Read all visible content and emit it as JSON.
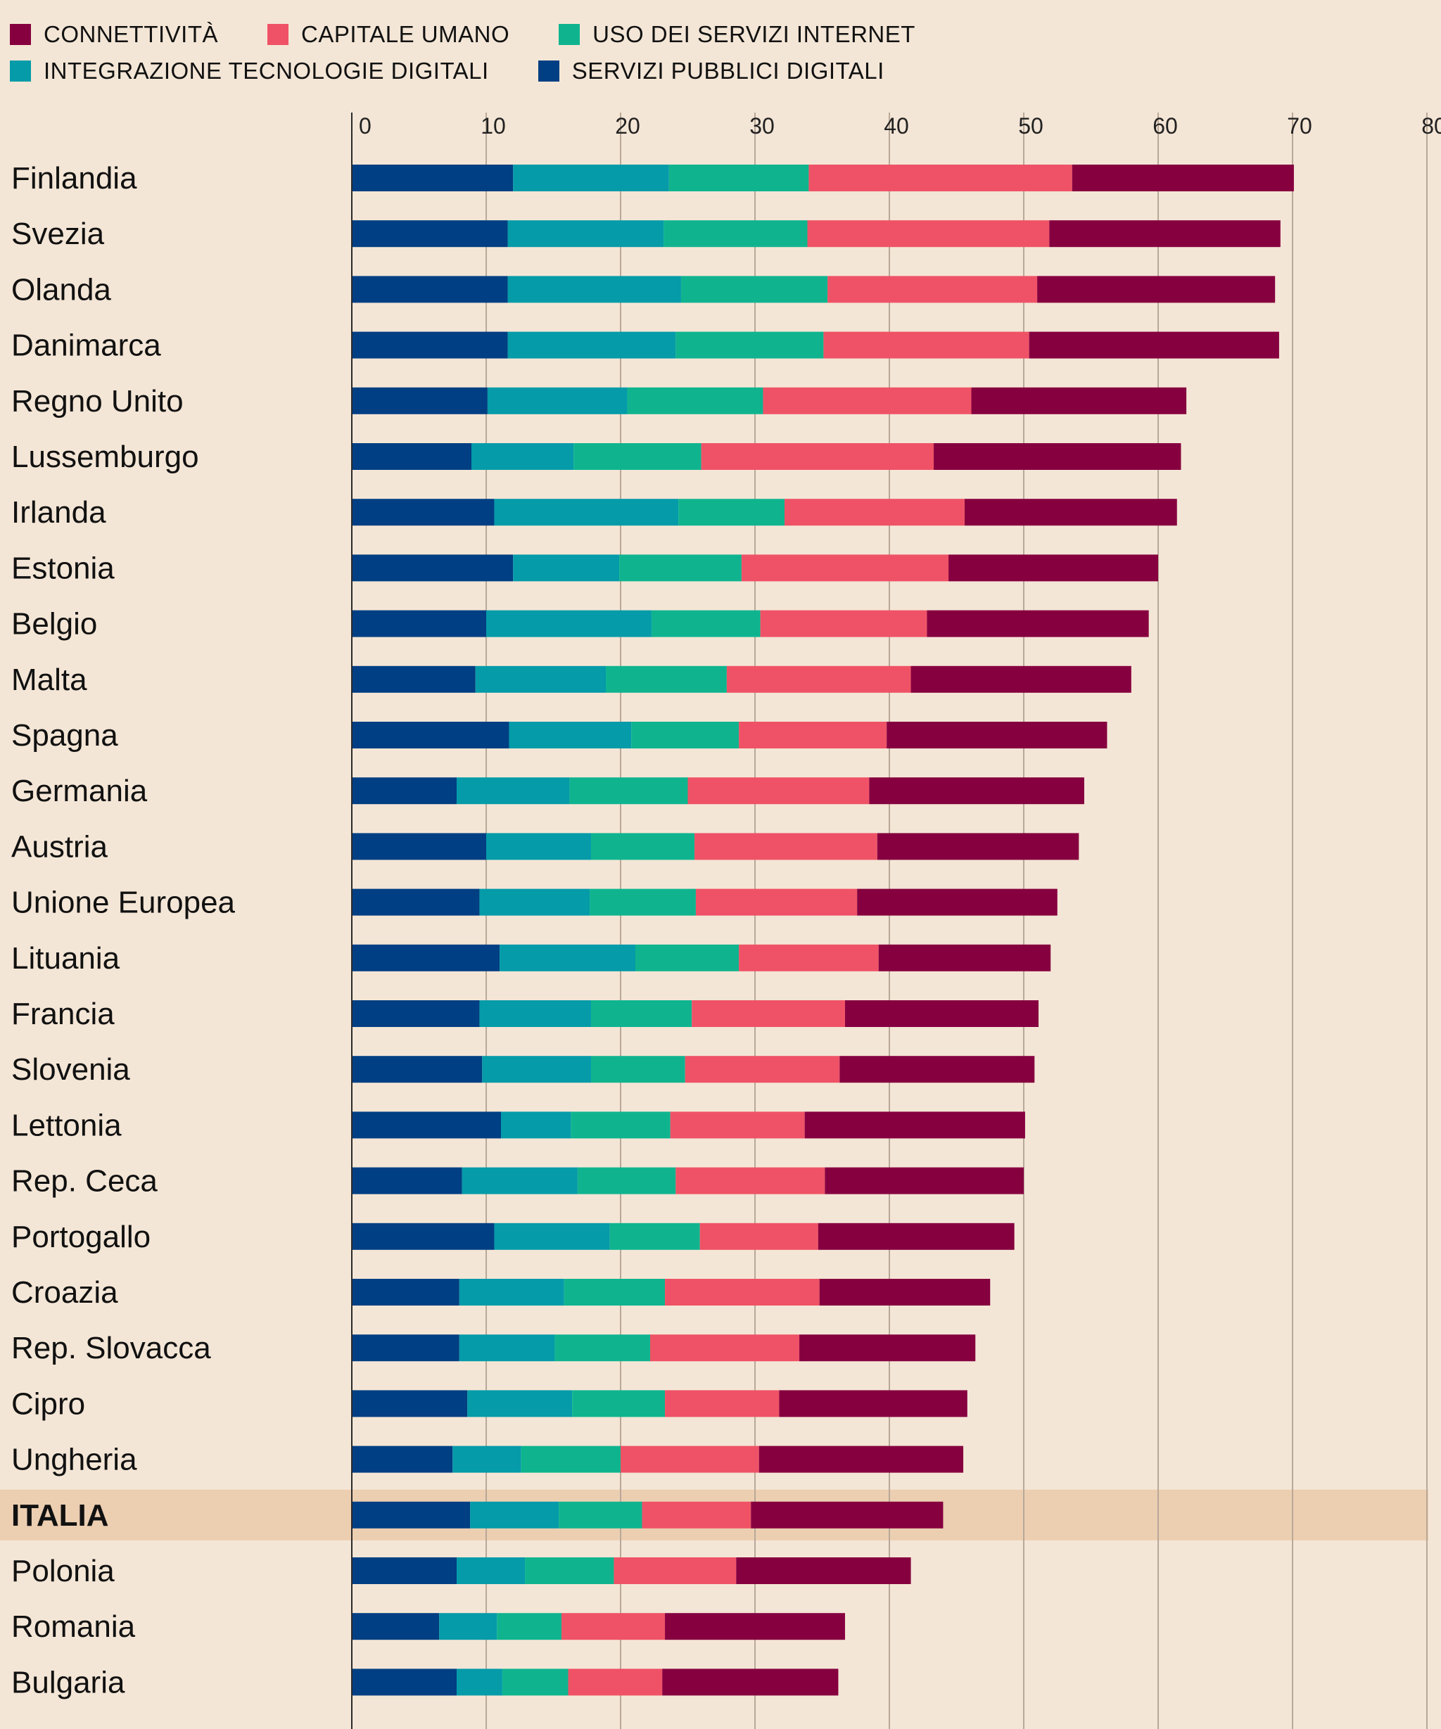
{
  "colors": {
    "background": "#f4e6d6",
    "highlight_band": "#ecceb1",
    "gridline": "#b8a898",
    "connettivita": "#860040",
    "capitale_umano": "#ef5266",
    "uso_internet": "#0fb48f",
    "integrazione": "#059ba9",
    "servizi_pubblici": "#003f83"
  },
  "legend": [
    {
      "key": "connettivita",
      "label": "CONNETTIVITÀ"
    },
    {
      "key": "capitale_umano",
      "label": "CAPITALE UMANO"
    },
    {
      "key": "uso_internet",
      "label": "USO DEI SERVIZI INTERNET"
    },
    {
      "key": "integrazione",
      "label": "INTEGRAZIONE TECNOLOGIE DIGITALI"
    },
    {
      "key": "servizi_pubblici",
      "label": "SERVIZI PUBBLICI DIGITALI"
    }
  ],
  "chart_data": {
    "type": "bar",
    "orientation": "horizontal",
    "stacked": true,
    "xlim": [
      0,
      80
    ],
    "ticks": [
      0,
      10,
      20,
      30,
      40,
      50,
      60,
      70,
      80
    ],
    "grid": true,
    "legend_position": "top",
    "highlight": "ITALIA",
    "categories": [
      "Finlandia",
      "Svezia",
      "Olanda",
      "Danimarca",
      "Regno Unito",
      "Lussemburgo",
      "Irlanda",
      "Estonia",
      "Belgio",
      "Malta",
      "Spagna",
      "Germania",
      "Austria",
      "Unione Europea",
      "Lituania",
      "Francia",
      "Slovenia",
      "Lettonia",
      "Rep. Ceca",
      "Portogallo",
      "Croazia",
      "Rep. Slovacca",
      "Cipro",
      "Ungheria",
      "ITALIA",
      "Polonia",
      "Romania",
      "Bulgaria"
    ],
    "series": [
      {
        "name": "SERVIZI PUBBLICI DIGITALI",
        "key": "servizi_pubblici",
        "values": [
          12.0,
          11.6,
          11.6,
          11.6,
          10.1,
          8.9,
          10.6,
          12.0,
          10.0,
          9.2,
          11.7,
          7.8,
          10.0,
          9.5,
          11.0,
          9.5,
          9.7,
          11.1,
          8.2,
          10.6,
          8.0,
          8.0,
          8.6,
          7.5,
          8.8,
          7.8,
          6.5,
          7.8
        ]
      },
      {
        "name": "INTEGRAZIONE TECNOLOGIE DIGITALI",
        "key": "integrazione",
        "values": [
          11.6,
          11.6,
          12.9,
          12.5,
          10.4,
          7.6,
          13.7,
          7.9,
          12.3,
          9.7,
          9.1,
          8.4,
          7.8,
          8.2,
          10.1,
          8.3,
          8.1,
          5.2,
          8.6,
          8.6,
          7.8,
          7.1,
          7.8,
          5.1,
          6.6,
          5.1,
          4.3,
          3.4
        ]
      },
      {
        "name": "USO DEI SERVIZI INTERNET",
        "key": "uso_internet",
        "values": [
          10.4,
          10.7,
          10.9,
          11.0,
          10.1,
          9.5,
          7.9,
          9.1,
          8.1,
          9.0,
          8.0,
          8.8,
          7.7,
          7.9,
          7.7,
          7.5,
          7.0,
          7.4,
          7.3,
          6.7,
          7.5,
          7.1,
          6.9,
          7.4,
          6.2,
          6.6,
          4.8,
          4.9
        ]
      },
      {
        "name": "CAPITALE UMANO",
        "key": "capitale_umano",
        "values": [
          19.6,
          18.0,
          15.6,
          15.3,
          15.5,
          17.3,
          13.4,
          15.4,
          12.4,
          13.7,
          11.0,
          13.5,
          13.6,
          12.0,
          10.4,
          11.4,
          11.5,
          10.0,
          11.1,
          8.8,
          11.5,
          11.1,
          8.5,
          10.3,
          8.1,
          9.1,
          7.7,
          7.0
        ]
      },
      {
        "name": "CONNETTIVITÀ",
        "key": "connettivita",
        "values": [
          16.5,
          17.2,
          17.7,
          18.6,
          16.0,
          18.4,
          15.8,
          15.6,
          16.5,
          16.4,
          16.4,
          16.0,
          15.0,
          14.9,
          12.8,
          14.4,
          14.5,
          16.4,
          14.8,
          14.6,
          12.7,
          13.1,
          14.0,
          15.2,
          14.3,
          13.0,
          13.4,
          13.1
        ]
      }
    ]
  }
}
